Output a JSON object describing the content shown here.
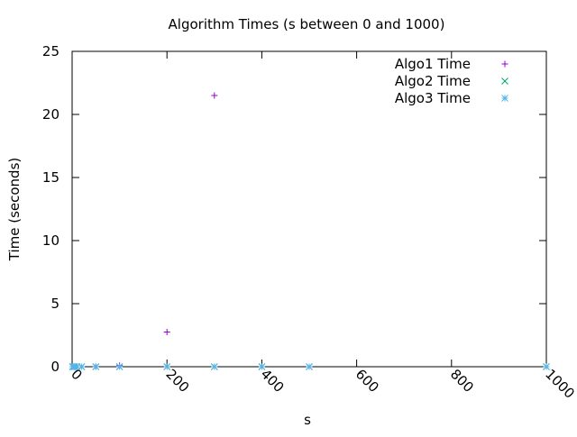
{
  "chart_data": {
    "type": "scatter",
    "title": "Algorithm Times (s between 0 and 1000)",
    "xlabel": "s",
    "ylabel": "Time (seconds)",
    "xlim": [
      0,
      1000
    ],
    "ylim": [
      0,
      25
    ],
    "x_ticks": [
      0,
      200,
      400,
      600,
      800,
      1000
    ],
    "y_ticks": [
      0,
      5,
      10,
      15,
      20,
      25
    ],
    "x_tick_labels": [
      "0",
      "200",
      "400",
      "600",
      "800",
      "1000"
    ],
    "y_tick_labels": [
      "0",
      "5",
      "10",
      "15",
      "20",
      "25"
    ],
    "x_tick_rotation": "rotated",
    "grid": false,
    "legend_position": "top-right",
    "series": [
      {
        "name": "Algo1 Time",
        "marker": "plus",
        "color": "#9400d3",
        "x": [
          1,
          2,
          5,
          10,
          20,
          50,
          100,
          200,
          300
        ],
        "y": [
          0,
          0,
          0,
          0,
          0,
          0.01,
          0.09,
          2.75,
          21.5
        ]
      },
      {
        "name": "Algo2 Time",
        "marker": "cross",
        "color": "#009e73",
        "x": [
          1,
          2,
          5,
          10,
          20,
          50,
          100,
          200,
          300,
          400,
          500,
          1000
        ],
        "y": [
          0,
          0,
          0,
          0,
          0,
          0,
          0,
          0,
          0,
          0,
          0,
          0
        ]
      },
      {
        "name": "Algo3 Time",
        "marker": "star",
        "color": "#56b4e9",
        "x": [
          1,
          2,
          5,
          10,
          20,
          50,
          100,
          200,
          300,
          400,
          500,
          1000
        ],
        "y": [
          0,
          0,
          0,
          0,
          0,
          0,
          0,
          0,
          0,
          0,
          0,
          0
        ]
      }
    ]
  }
}
